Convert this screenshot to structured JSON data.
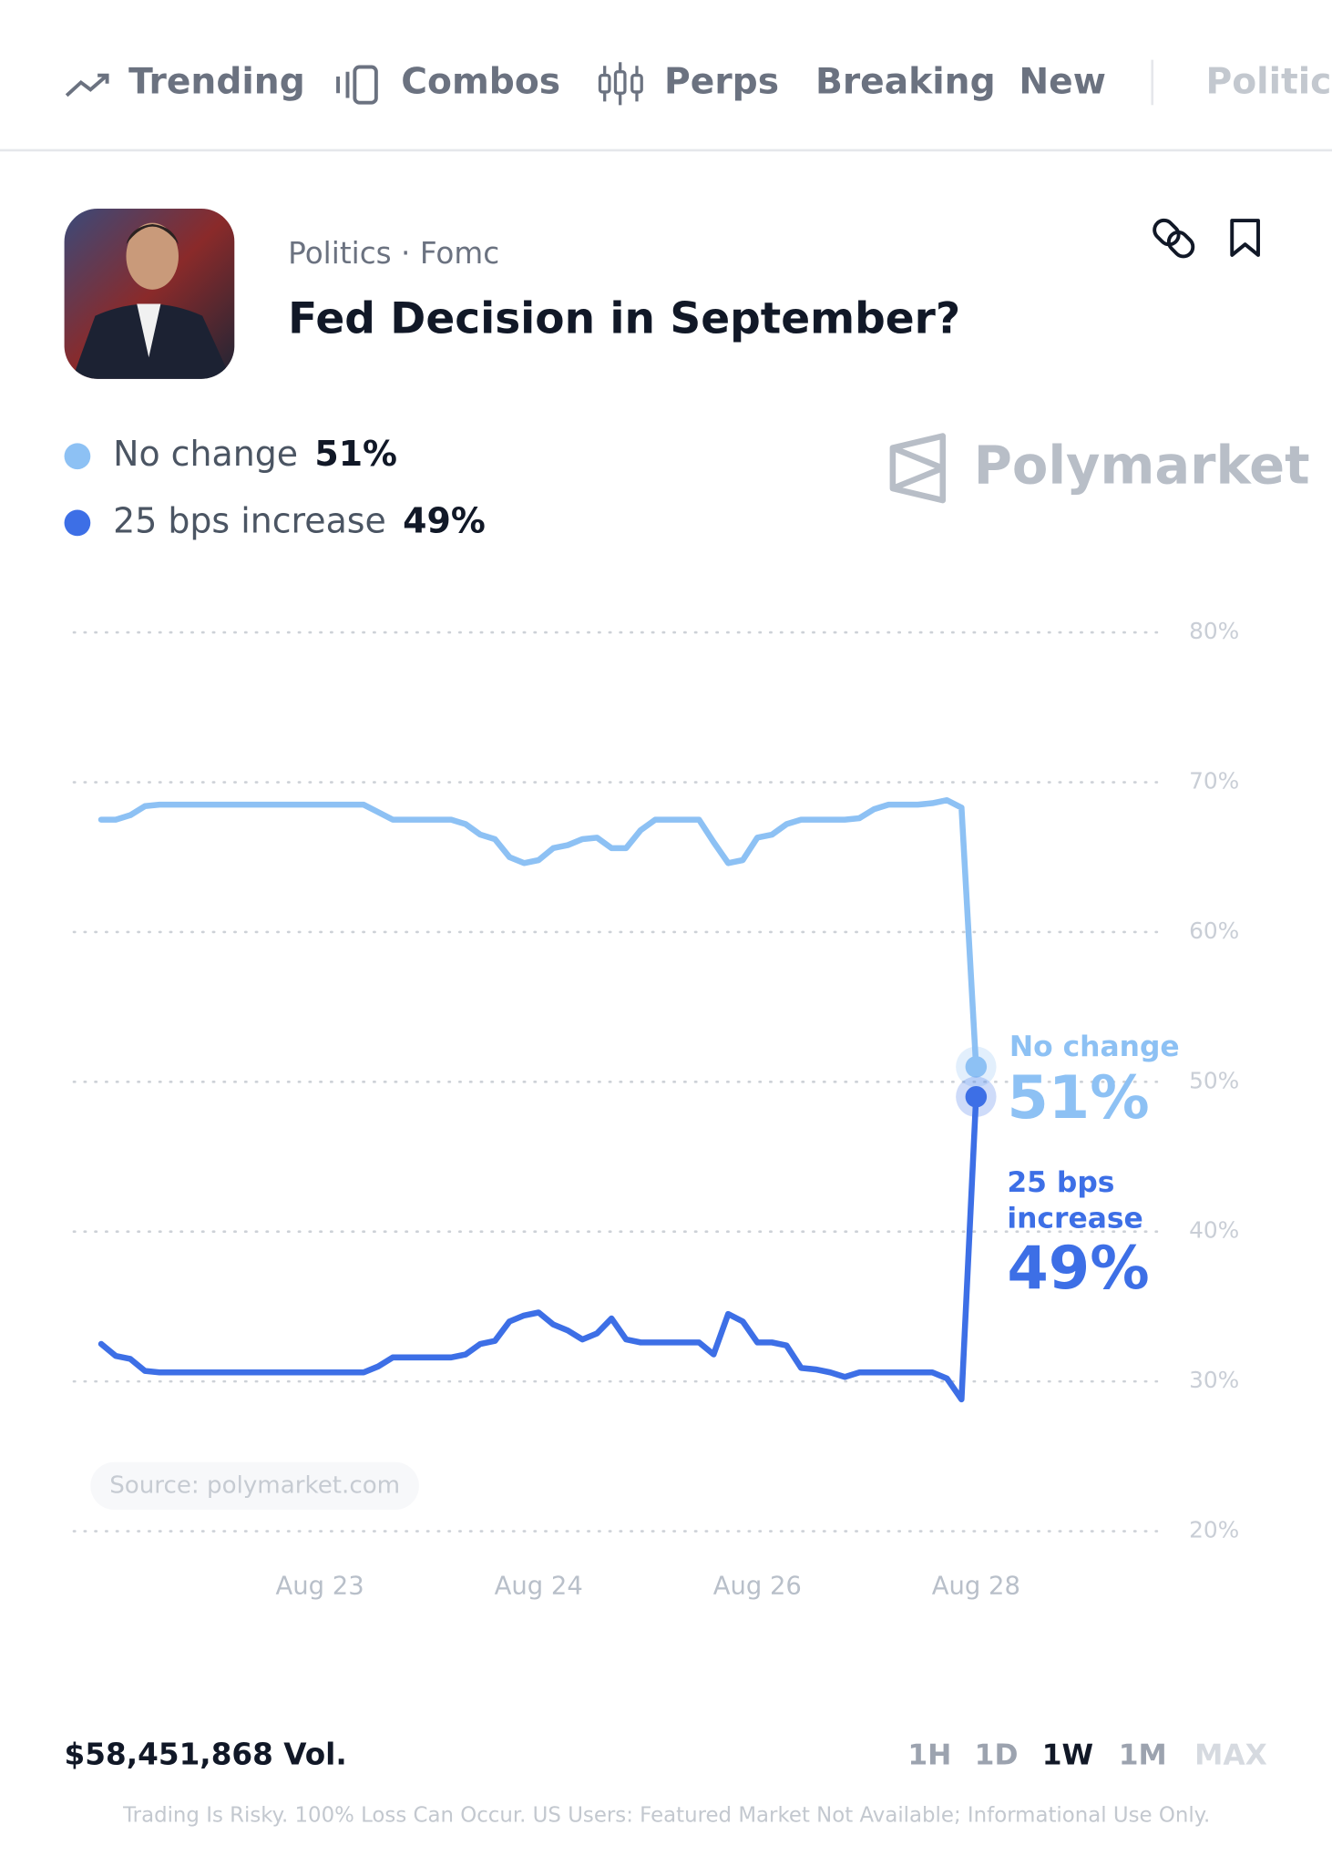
{
  "nav": {
    "items": [
      "Trending",
      "Combos",
      "Perps",
      "Breaking",
      "New",
      "Politics"
    ]
  },
  "header": {
    "breadcrumb": "Politics · Fomc",
    "title": "Fed Decision in September?",
    "brand": "Polymarket"
  },
  "chart_data": {
    "type": "line",
    "categories": [
      null,
      null,
      null,
      null,
      null,
      null,
      null,
      null,
      null,
      null,
      null,
      null,
      null,
      null,
      null,
      "Aug 23",
      null,
      null,
      null,
      null,
      null,
      null,
      null,
      null,
      null,
      null,
      null,
      null,
      null,
      null,
      "Aug 24",
      null,
      null,
      null,
      null,
      null,
      null,
      null,
      null,
      null,
      null,
      null,
      null,
      null,
      null,
      "Aug 26",
      null,
      null,
      null,
      null,
      null,
      null,
      null,
      null,
      null,
      null,
      null,
      null,
      null,
      null,
      "Aug 28"
    ],
    "series": [
      {
        "name": "No change",
        "color": "#8dc1f4",
        "values": [
          67.5,
          67.5,
          67.8,
          68.4,
          68.5,
          68.5,
          68.5,
          68.5,
          68.5,
          68.5,
          68.5,
          68.5,
          68.5,
          68.5,
          68.5,
          68.5,
          68.5,
          68.5,
          68.5,
          68.0,
          67.5,
          67.5,
          67.5,
          67.5,
          67.5,
          67.2,
          66.5,
          66.2,
          65.0,
          64.6,
          64.8,
          65.6,
          65.8,
          66.2,
          66.3,
          65.6,
          65.6,
          66.8,
          67.5,
          67.5,
          67.5,
          67.5,
          66.0,
          64.6,
          64.8,
          66.3,
          66.5,
          67.2,
          67.5,
          67.5,
          67.5,
          67.5,
          67.6,
          68.2,
          68.5,
          68.5,
          68.5,
          68.6,
          68.8,
          68.3,
          51
        ],
        "value_labels": [
          null,
          null,
          null,
          null,
          null,
          null,
          null,
          null,
          null,
          null,
          null,
          null,
          null,
          null,
          null,
          null,
          null,
          null,
          null,
          null,
          null,
          null,
          null,
          null,
          null,
          null,
          null,
          null,
          null,
          null,
          null,
          null,
          null,
          null,
          null,
          null,
          null,
          null,
          null,
          null,
          null,
          null,
          null,
          null,
          null,
          null,
          null,
          null,
          null,
          null,
          null,
          null,
          null,
          null,
          null,
          null,
          null,
          null,
          null,
          null,
          "51%"
        ]
      },
      {
        "name": "25 bps increase",
        "color": "#3d6fe6",
        "values": [
          32.5,
          31.7,
          31.5,
          30.7,
          30.6,
          30.6,
          30.6,
          30.6,
          30.6,
          30.6,
          30.6,
          30.6,
          30.6,
          30.6,
          30.6,
          30.6,
          30.6,
          30.6,
          30.6,
          31.0,
          31.6,
          31.6,
          31.6,
          31.6,
          31.6,
          31.8,
          32.5,
          32.7,
          34.0,
          34.4,
          34.6,
          33.8,
          33.4,
          32.8,
          33.2,
          34.2,
          32.8,
          32.6,
          32.6,
          32.6,
          32.6,
          32.6,
          31.8,
          34.5,
          34.0,
          32.6,
          32.6,
          32.4,
          30.9,
          30.8,
          30.6,
          30.3,
          30.6,
          30.6,
          30.6,
          30.6,
          30.6,
          30.6,
          30.2,
          28.8,
          49
        ],
        "value_labels": [
          null,
          null,
          null,
          null,
          null,
          null,
          null,
          null,
          null,
          null,
          null,
          null,
          null,
          null,
          null,
          null,
          null,
          null,
          null,
          null,
          null,
          null,
          null,
          null,
          null,
          null,
          null,
          null,
          null,
          null,
          null,
          null,
          null,
          null,
          null,
          null,
          null,
          null,
          null,
          null,
          null,
          null,
          null,
          null,
          null,
          null,
          null,
          null,
          null,
          null,
          null,
          null,
          null,
          null,
          null,
          null,
          null,
          null,
          null,
          null,
          "49%"
        ]
      }
    ],
    "ylim": [
      20,
      80
    ],
    "yticks": [
      {
        "value": 20,
        "label": "20%"
      },
      {
        "value": 30,
        "label": "30%"
      },
      {
        "value": 40,
        "label": "40%"
      },
      {
        "value": 50,
        "label": "50%"
      },
      {
        "value": 60,
        "label": "60%"
      },
      {
        "value": 70,
        "label": "70%"
      },
      {
        "value": 80,
        "label": "80%"
      }
    ],
    "grid": true,
    "annotation": "Source: polymarket.com"
  },
  "footer": {
    "volume": "$58,451,868 Vol.",
    "periods": [
      "1H",
      "1D",
      "1W",
      "1M",
      "MAX"
    ],
    "disclaimer": "Trading Is Risky. 100% Loss Can Occur. US Users: Featured Market Not Available; Informational Use Only."
  }
}
